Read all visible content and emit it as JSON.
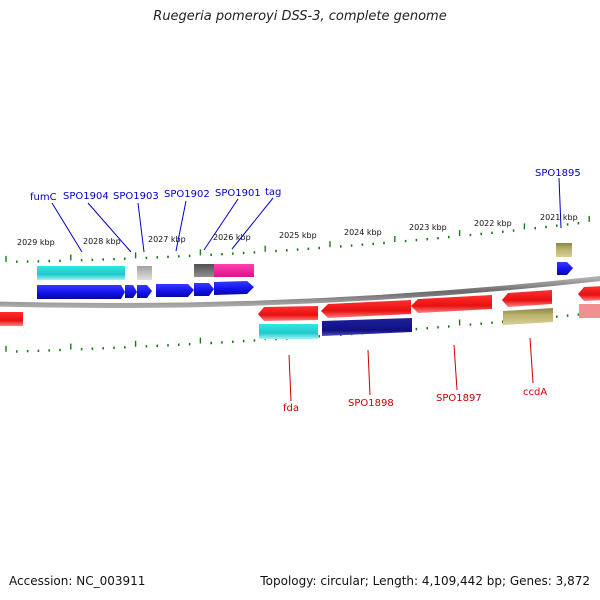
{
  "title": "Ruegeria pomeroyi DSS-3, complete genome",
  "footer": {
    "accession": "Accession: NC_003911",
    "summary": "Topology: circular; Length: 4,109,442 bp; Genes: 3,872"
  },
  "kbp_labels": [
    "2029 kbp",
    "2028 kbp",
    "2027 kbp",
    "2026 kbp",
    "2025 kbp",
    "2024 kbp",
    "2023 kbp",
    "2022 kbp",
    "2021 kbp"
  ],
  "genes_top": [
    "fumC",
    "SPO1904",
    "SPO1903",
    "SPO1902",
    "SPO1901",
    "tag",
    "SPO1895"
  ],
  "genes_bottom": [
    "fda",
    "SPO1898",
    "SPO1897",
    "ccdA"
  ],
  "colors": {
    "forward_cds": "#1010e8",
    "reverse_cds": "#e81010",
    "cyan": "#20d0d0",
    "navy": "#101080",
    "olive": "#b0a860",
    "magenta": "#f0209a",
    "grey": "#707070",
    "light_grey": "#c0c0c0",
    "tick": "#1a7a1a",
    "backbone": "#808080"
  }
}
